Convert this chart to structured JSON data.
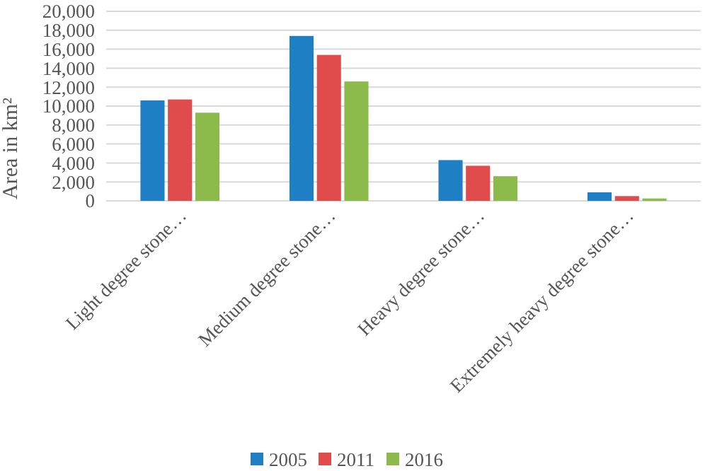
{
  "chart_data": {
    "type": "bar",
    "ylabel": "Area in km²",
    "categories": [
      "Light degree stone…",
      "Medium degree stone…",
      "Heavy degree stone…",
      "Extremely heavy degree stone…"
    ],
    "series": [
      {
        "name": "2005",
        "color": "#1f7fc4",
        "values": [
          10600,
          17400,
          4300,
          900
        ]
      },
      {
        "name": "2011",
        "color": "#e04b4b",
        "values": [
          10700,
          15400,
          3700,
          500
        ]
      },
      {
        "name": "2016",
        "color": "#8cbb4c",
        "values": [
          9300,
          12600,
          2600,
          250
        ]
      }
    ],
    "ylim": [
      0,
      20000
    ],
    "yticks": [
      {
        "value": 0,
        "label": "0"
      },
      {
        "value": 2000,
        "label": "2,000"
      },
      {
        "value": 4000,
        "label": "4,000"
      },
      {
        "value": 6000,
        "label": "6,000"
      },
      {
        "value": 8000,
        "label": "8,000"
      },
      {
        "value": 10000,
        "label": "10,000"
      },
      {
        "value": 12000,
        "label": "12,000"
      },
      {
        "value": 14000,
        "label": "14,000"
      },
      {
        "value": 16000,
        "label": "16,000"
      },
      {
        "value": 18000,
        "label": "18,000"
      },
      {
        "value": 20000,
        "label": "20,000"
      }
    ],
    "grid": "y",
    "legend": "bottom"
  }
}
